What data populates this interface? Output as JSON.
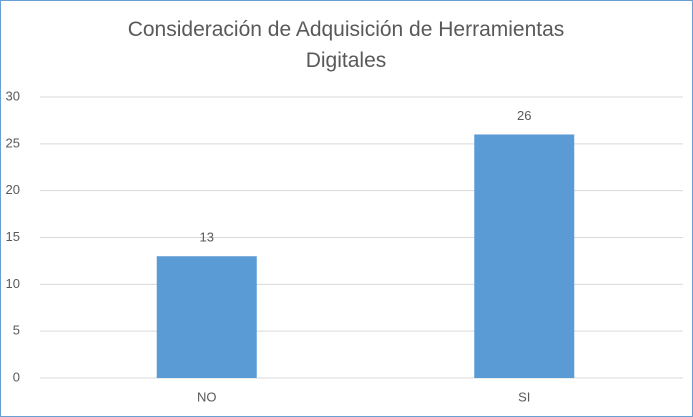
{
  "chart_data": {
    "type": "bar",
    "title": "Consideración de Adquisición de Herramientas Digitales",
    "categories": [
      "NO",
      "SI"
    ],
    "values": [
      13,
      26
    ],
    "color": "#5b9bd5",
    "ylim": [
      0,
      30
    ],
    "yticks": [
      0,
      5,
      10,
      15,
      20,
      25,
      30
    ],
    "grid": true
  }
}
